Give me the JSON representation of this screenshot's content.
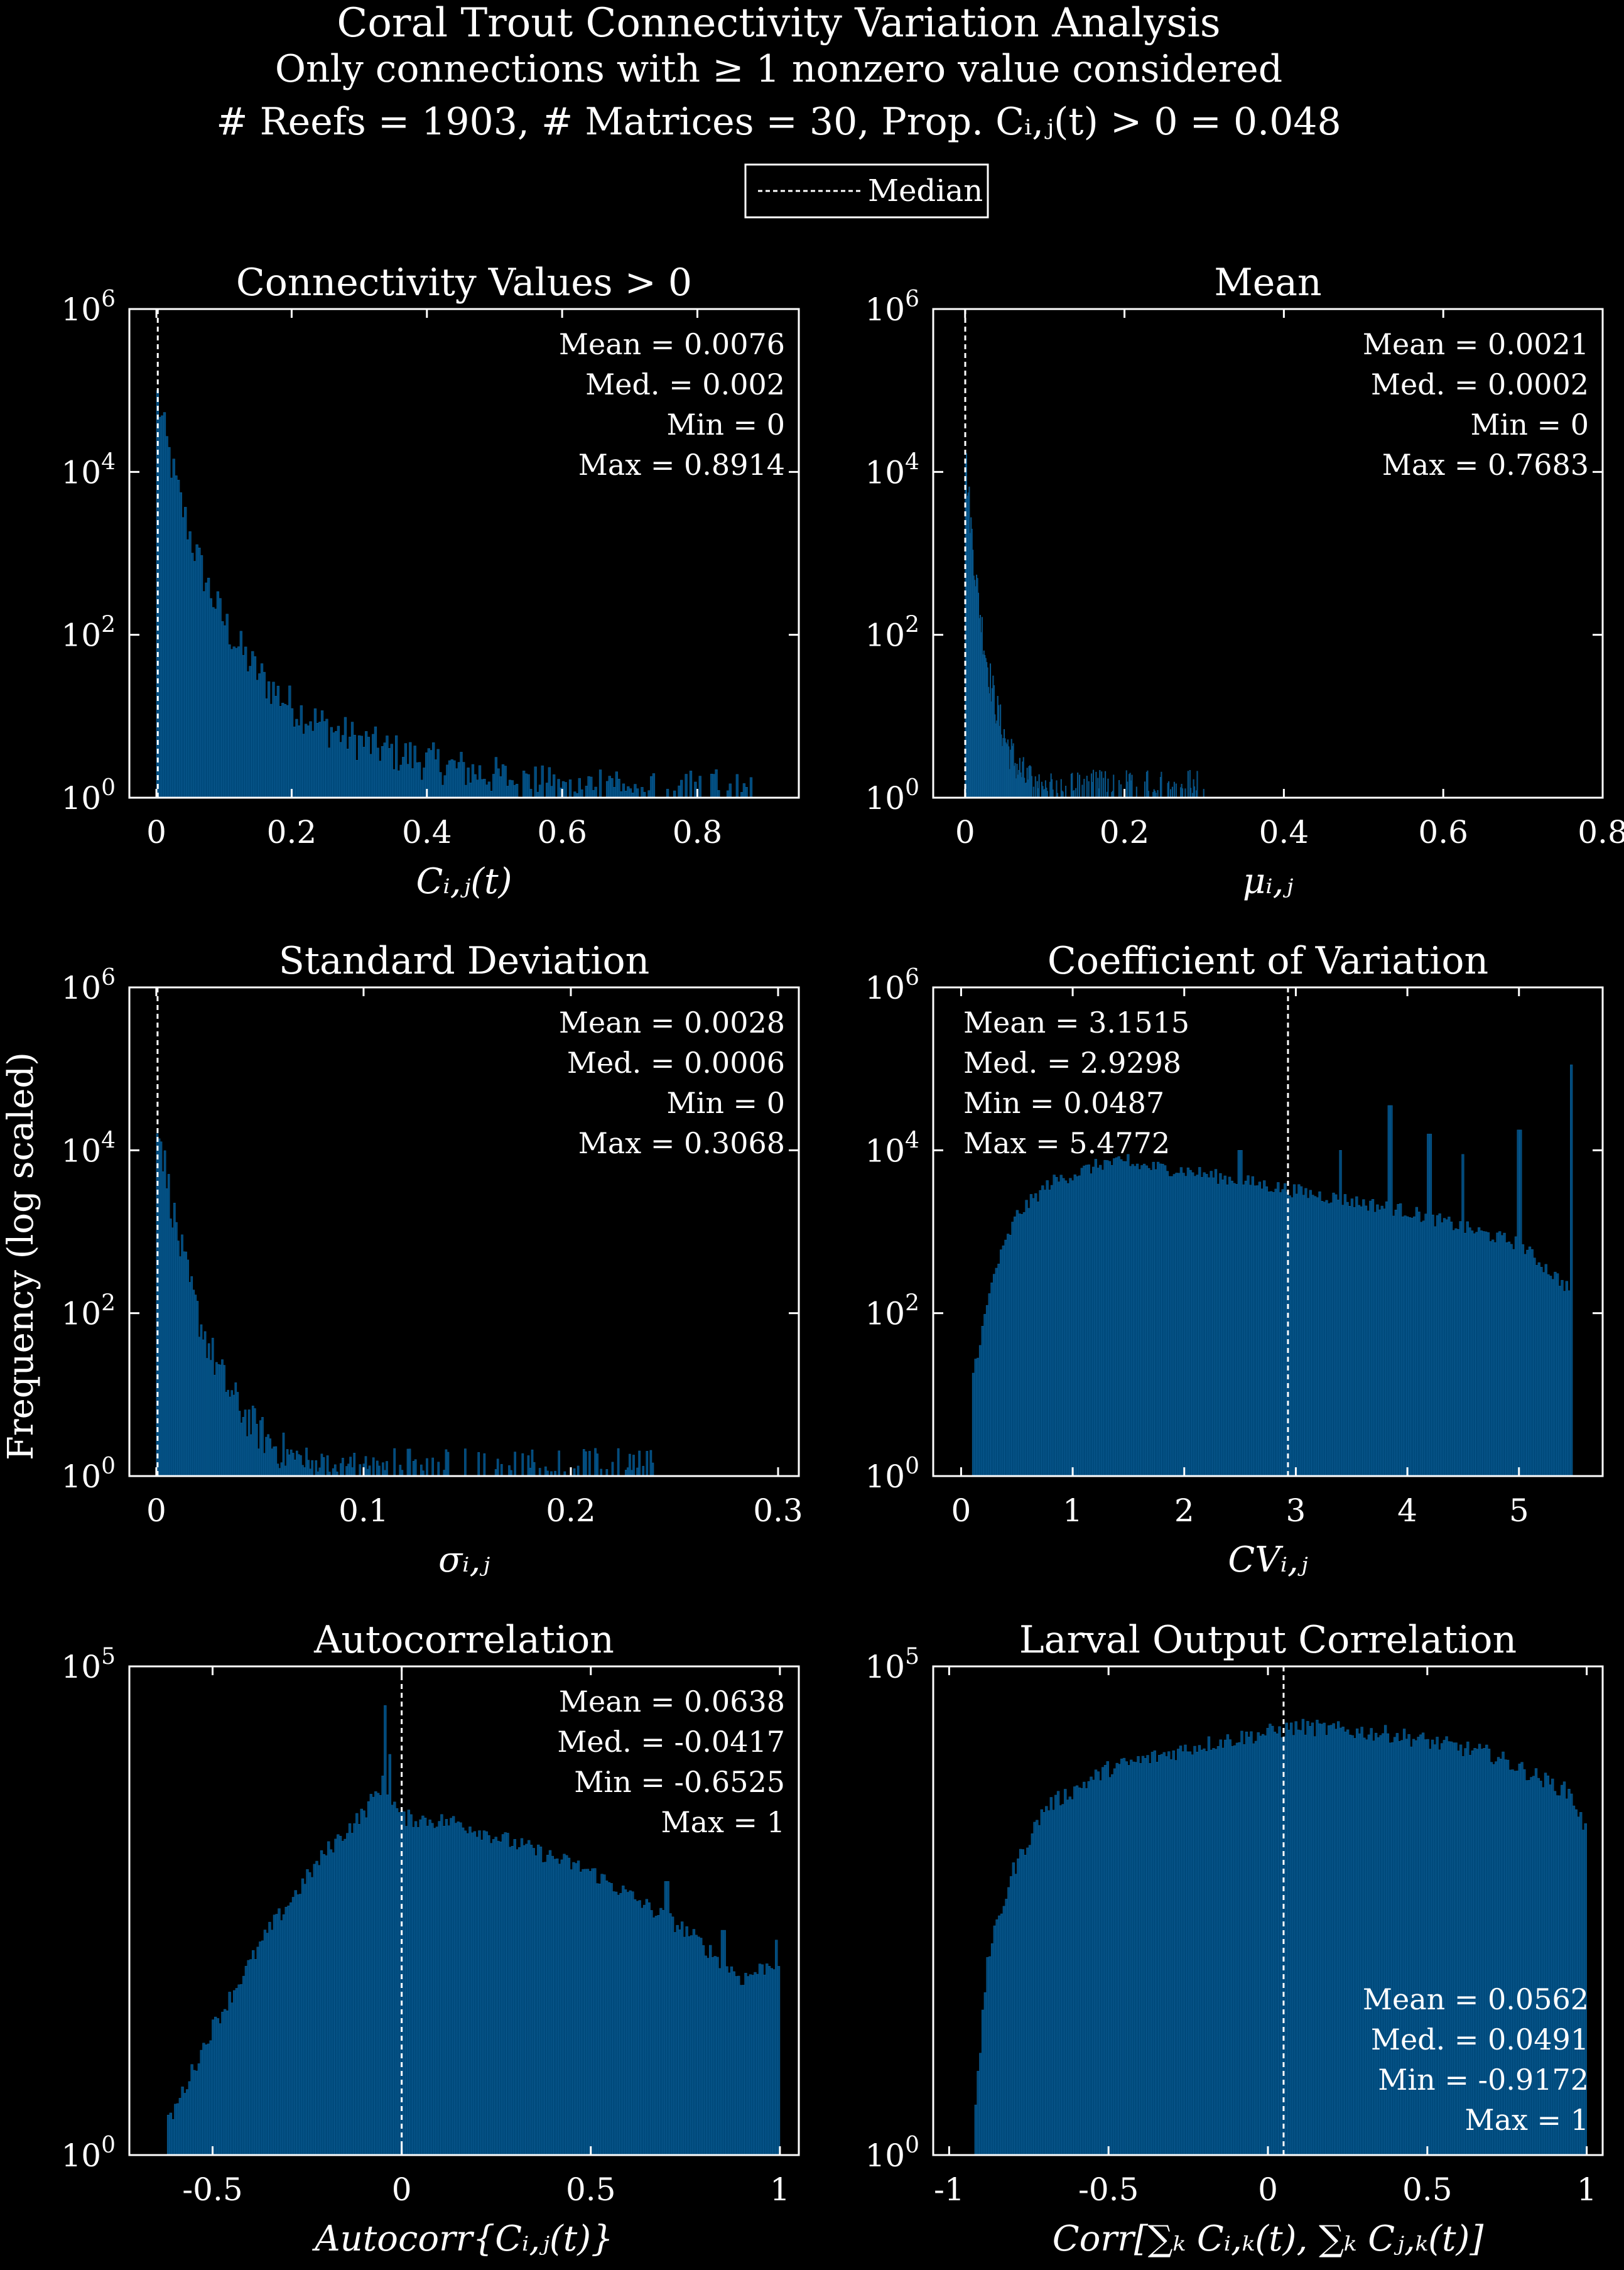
{
  "figure": {
    "title": "Coral Trout Connectivity Variation Analysis",
    "subtitle1": "Only connections with ≥ 1 nonzero value considered",
    "subtitle2": "# Reefs = 1903, # Matrices = 30, Prop. Cᵢ,ⱼ(t) > 0 = 0.048",
    "ylabel": "Frequency (log scaled)",
    "legend_label": "Median",
    "colors": {
      "bars": "#004a7c",
      "bars_edge": "#0f5f95",
      "background": "#000000",
      "axes": "#ffffff",
      "median_line": "#ffffff"
    }
  },
  "chart_data": [
    {
      "type": "bar",
      "title": "Connectivity Values > 0",
      "xlabel": "Cᵢ,ⱼ(t)",
      "xlim": [
        -0.04,
        0.95
      ],
      "xticks": [
        0,
        0.2,
        0.4,
        0.6,
        0.8
      ],
      "xtick_labels": [
        "0",
        "0.2",
        "0.4",
        "0.6",
        "0.8"
      ],
      "yscale": "log",
      "ylim_exp": [
        0,
        6
      ],
      "yticks_exp": [
        0,
        2,
        4,
        6
      ],
      "median": 0.002,
      "stats_position": "top-right",
      "stats": [
        "Mean = 0.0076",
        "Med. = 0.002",
        "Min = 0",
        "Max = 0.8914"
      ],
      "bins": {
        "start": 0,
        "end": 0.8914,
        "peak_exp": 5.0,
        "decay_exp": 4.0,
        "decay_scale": 0.09,
        "floor_exp": 0,
        "noise": 0.25
      }
    },
    {
      "type": "bar",
      "title": "Mean",
      "xlabel": "μᵢ,ⱼ",
      "xlim": [
        -0.04,
        0.8
      ],
      "xticks": [
        0,
        0.2,
        0.4,
        0.6,
        0.8
      ],
      "xtick_labels": [
        "0",
        "0.2",
        "0.4",
        "0.6",
        "0.8"
      ],
      "yscale": "log",
      "ylim_exp": [
        0,
        6
      ],
      "yticks_exp": [
        0,
        2,
        4,
        6
      ],
      "median": 0.0002,
      "stats_position": "top-right",
      "stats": [
        "Mean = 0.0021",
        "Med. = 0.0002",
        "Min = 0",
        "Max = 0.7683"
      ],
      "bins": {
        "start": 0,
        "end": 0.3,
        "peak_exp": 4.3,
        "decay_exp": 4.3,
        "decay_scale": 0.03,
        "floor_exp": 0,
        "noise": 0.25
      }
    },
    {
      "type": "bar",
      "title": "Standard Deviation",
      "xlabel": "σᵢ,ⱼ",
      "xlim": [
        -0.013,
        0.31
      ],
      "xticks": [
        0,
        0.1,
        0.2,
        0.3
      ],
      "xtick_labels": [
        "0",
        "0.1",
        "0.2",
        "0.3"
      ],
      "yscale": "log",
      "ylim_exp": [
        0,
        6
      ],
      "yticks_exp": [
        0,
        2,
        4,
        6
      ],
      "median": 0.0006,
      "stats_position": "top-right",
      "stats": [
        "Mean = 0.0028",
        "Med. = 0.0006",
        "Min = 0",
        "Max = 0.3068"
      ],
      "bins": {
        "start": 0,
        "end": 0.24,
        "peak_exp": 4.5,
        "decay_exp": 4.5,
        "decay_scale": 0.025,
        "floor_exp": 0,
        "noise": 0.25
      }
    },
    {
      "type": "bar",
      "title": "Coefficient of Variation",
      "xlabel": "CVᵢ,ⱼ",
      "xlim": [
        -0.25,
        5.75
      ],
      "xticks": [
        0,
        1,
        2,
        3,
        4,
        5
      ],
      "xtick_labels": [
        "0",
        "1",
        "2",
        "3",
        "4",
        "5"
      ],
      "yscale": "log",
      "ylim_exp": [
        0,
        6
      ],
      "yticks_exp": [
        0,
        2,
        4,
        6
      ],
      "median": 2.9298,
      "stats_position": "top-left",
      "stats": [
        "Mean = 3.1515",
        "Med. = 2.9298",
        "Min = 0.0487",
        "Max = 5.4772"
      ],
      "profile": [
        [
          0.1,
          1.2
        ],
        [
          0.3,
          2.5
        ],
        [
          0.5,
          3.2
        ],
        [
          0.8,
          3.6
        ],
        [
          1.3,
          3.85
        ],
        [
          2.0,
          3.75
        ],
        [
          3.0,
          3.5
        ],
        [
          4.0,
          3.25
        ],
        [
          5.0,
          2.85
        ],
        [
          5.45,
          2.3
        ]
      ],
      "spikes": [
        [
          1.5,
          3.95
        ],
        [
          2.5,
          4.0
        ],
        [
          3.4,
          4.0
        ],
        [
          3.85,
          4.55
        ],
        [
          4.2,
          4.2
        ],
        [
          4.5,
          3.95
        ],
        [
          5.0,
          4.25
        ],
        [
          5.47,
          5.05
        ]
      ],
      "bin_range": [
        0.1,
        5.48
      ]
    },
    {
      "type": "bar",
      "title": "Autocorrelation",
      "xlabel": "Autocorr{Cᵢ,ⱼ(t)}",
      "xlim": [
        -0.72,
        1.05
      ],
      "xticks": [
        -0.5,
        0,
        0.5,
        1
      ],
      "xtick_labels": [
        "-0.5",
        "0",
        "0.5",
        "1"
      ],
      "yscale": "log",
      "ylim_exp": [
        0,
        5
      ],
      "yticks_exp": [
        0,
        5
      ],
      "median": -0.0417,
      "median_drawn_at": 0,
      "stats_position": "top-right",
      "stats": [
        "Mean = 0.0638",
        "Med. = -0.0417",
        "Min = -0.6525",
        "Max = 1"
      ],
      "profile": [
        [
          -0.62,
          0.3
        ],
        [
          -0.5,
          1.3
        ],
        [
          -0.35,
          2.3
        ],
        [
          -0.2,
          3.1
        ],
        [
          -0.1,
          3.5
        ],
        [
          -0.05,
          3.8
        ],
        [
          0.0,
          3.45
        ],
        [
          0.15,
          3.4
        ],
        [
          0.5,
          2.9
        ],
        [
          0.75,
          2.3
        ],
        [
          0.9,
          1.8
        ],
        [
          1.0,
          2.0
        ]
      ],
      "spikes": [
        [
          -0.045,
          4.6
        ],
        [
          -0.03,
          4.1
        ],
        [
          0.7,
          2.8
        ],
        [
          0.85,
          2.3
        ],
        [
          0.99,
          2.2
        ]
      ],
      "bin_range": [
        -0.62,
        1.0
      ]
    },
    {
      "type": "bar",
      "title": "Larval Output Correlation",
      "xlabel": "Corr[∑ₖ Cᵢ,ₖ(t), ∑ₖ Cⱼ,ₖ(t)]",
      "xlim": [
        -1.05,
        1.05
      ],
      "xticks": [
        -1,
        -0.5,
        0,
        0.5,
        1
      ],
      "xtick_labels": [
        "-1",
        "-0.5",
        "0",
        "0.5",
        "1"
      ],
      "yscale": "log",
      "ylim_exp": [
        0,
        5
      ],
      "yticks_exp": [
        0,
        5
      ],
      "median": 0.0491,
      "stats_position": "bottom-right",
      "stats": [
        "Mean = 0.0562",
        "Med. = 0.0491",
        "Min = -0.9172",
        "Max = 1"
      ],
      "profile": [
        [
          -0.92,
          0.3
        ],
        [
          -0.88,
          2.0
        ],
        [
          -0.8,
          2.9
        ],
        [
          -0.7,
          3.55
        ],
        [
          -0.5,
          3.95
        ],
        [
          -0.2,
          4.2
        ],
        [
          0.1,
          4.38
        ],
        [
          0.4,
          4.3
        ],
        [
          0.7,
          4.1
        ],
        [
          0.95,
          3.7
        ],
        [
          1.0,
          3.3
        ]
      ],
      "spikes": [],
      "bin_range": [
        -0.92,
        1.0
      ]
    }
  ]
}
